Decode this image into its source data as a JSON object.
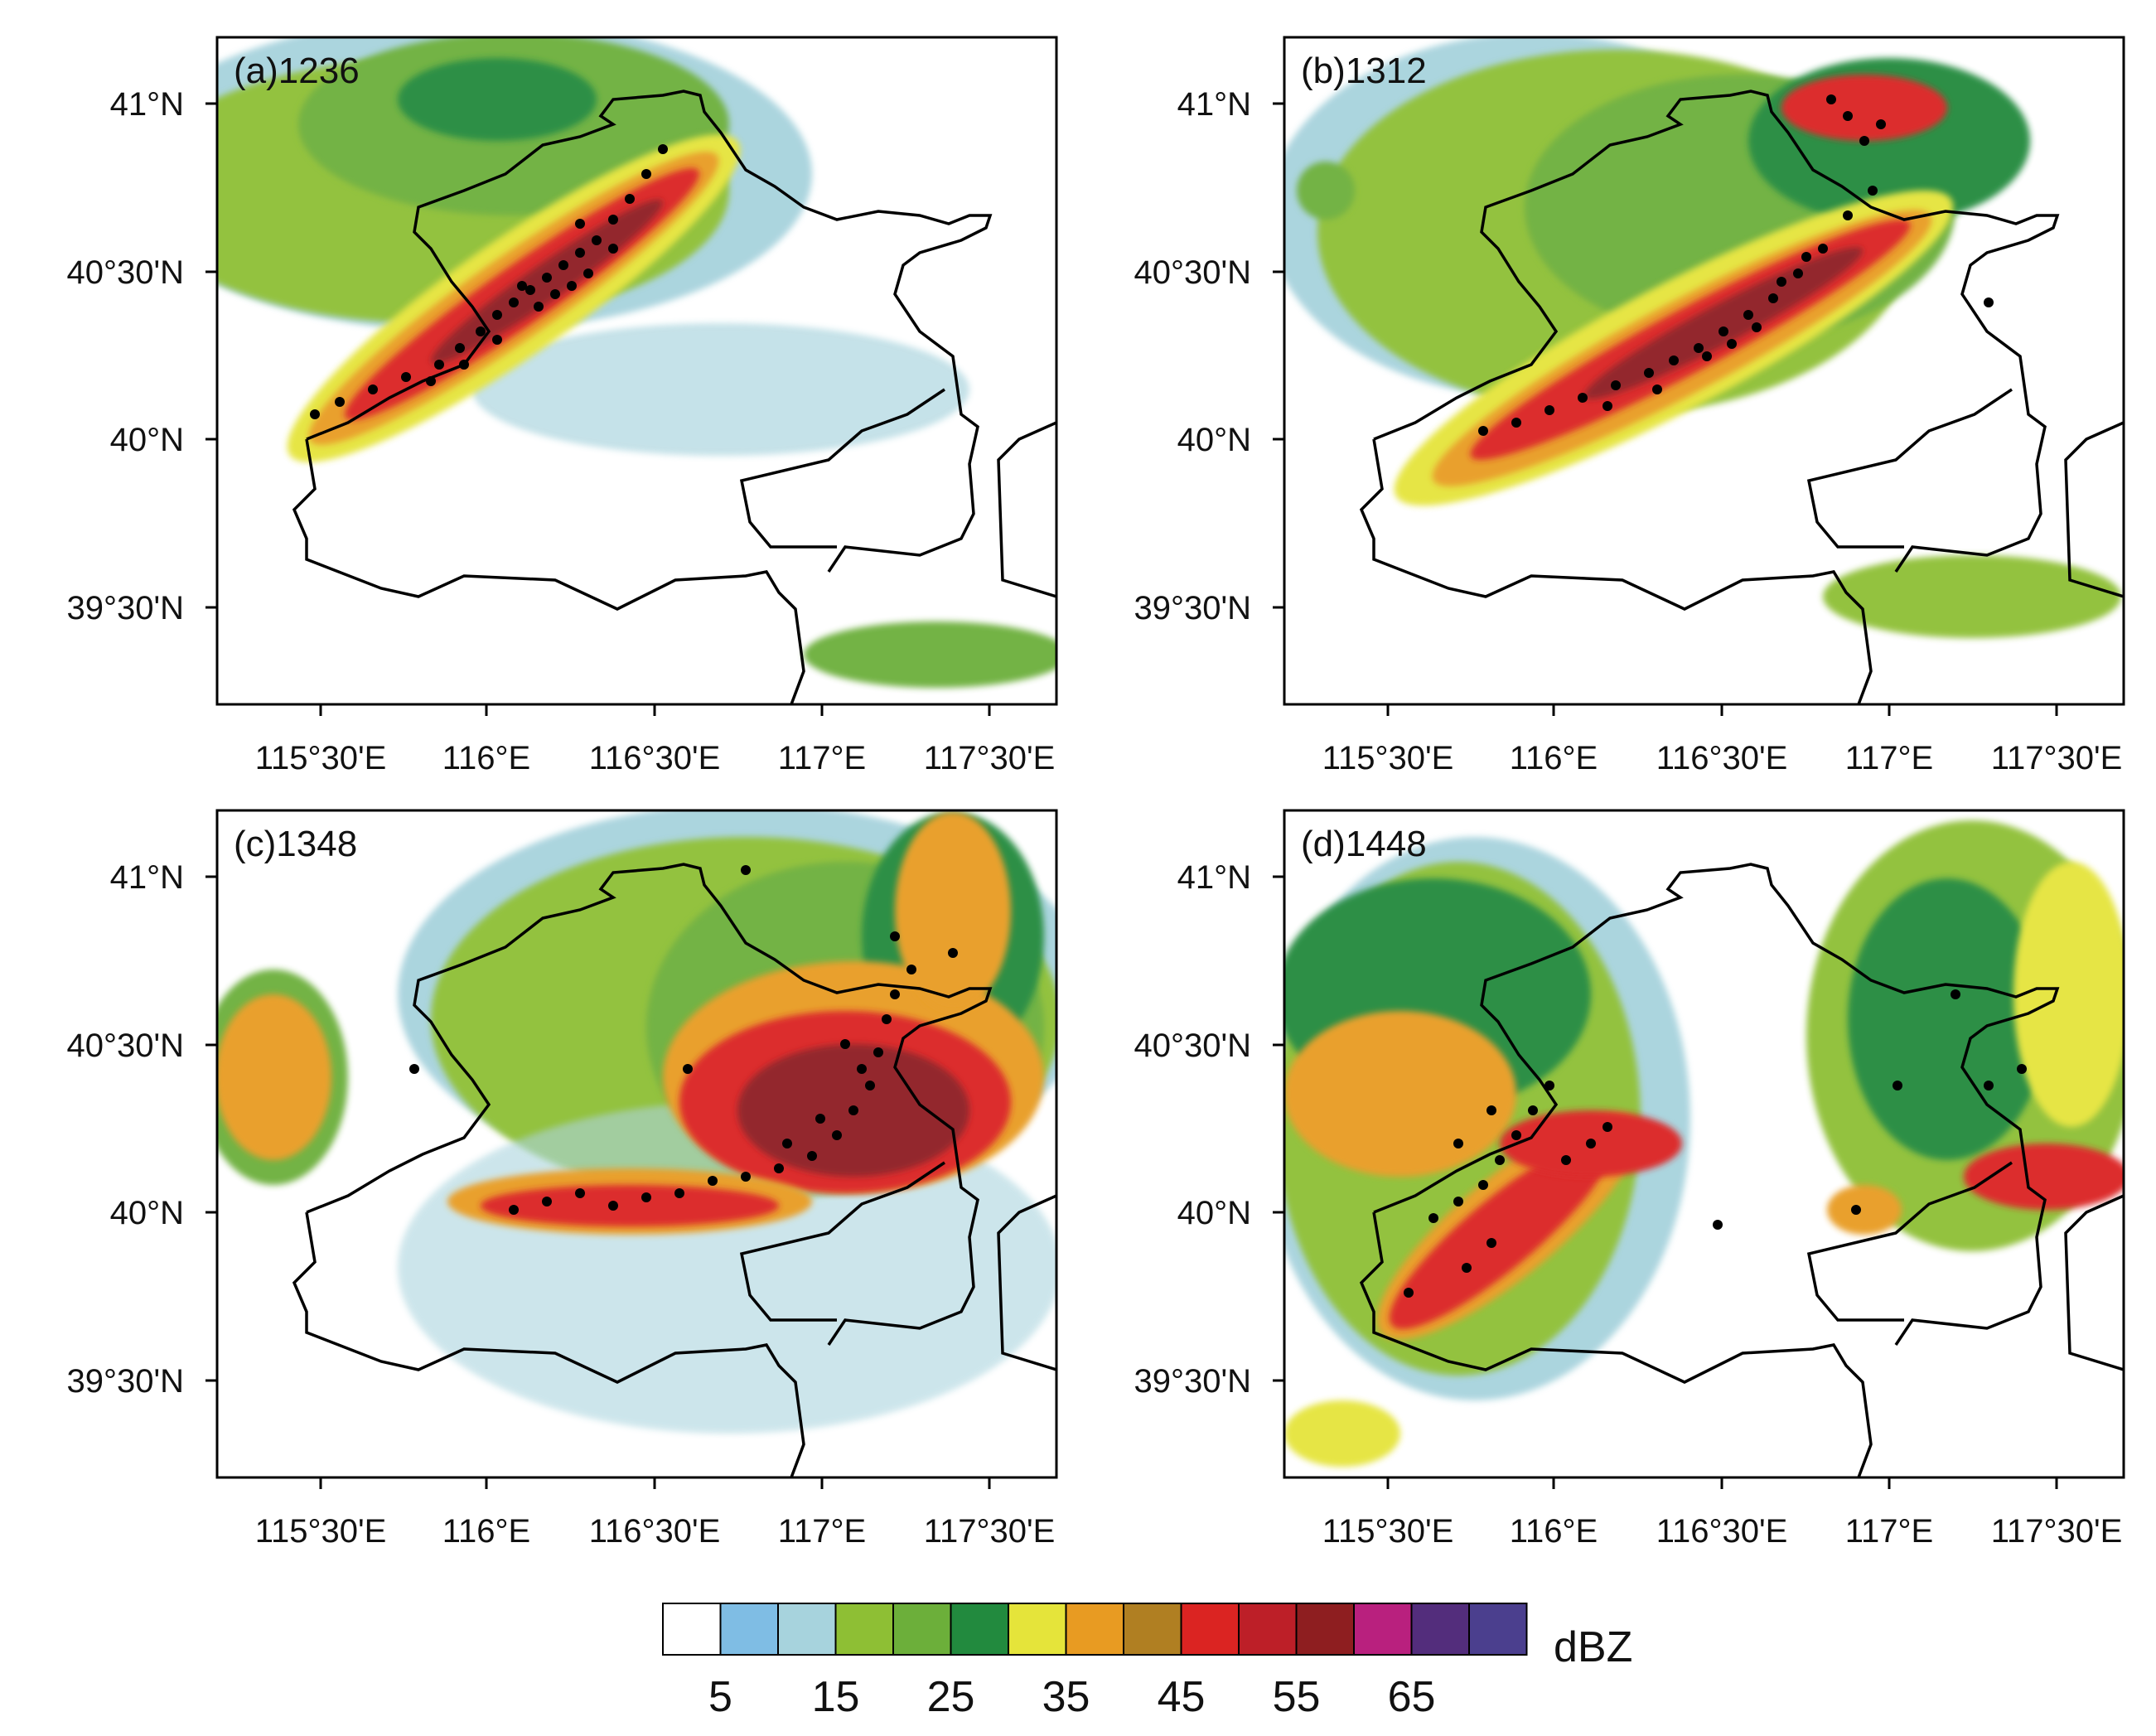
{
  "figure": {
    "unit": "dBZ",
    "lat_ticks": [
      "41°N",
      "40°30'N",
      "40°N",
      "39°30'N"
    ],
    "lon_ticks": [
      "115°30'E",
      "116°E",
      "116°30'E",
      "117°E",
      "117°30'E"
    ],
    "colorbar": {
      "colors": [
        "#ffffff",
        "#7fbde4",
        "#a7d3dd",
        "#8ebf34",
        "#6caf3a",
        "#228a3e",
        "#e5e43a",
        "#e89b22",
        "#b07f22",
        "#db2422",
        "#bd1f28",
        "#8e1e20",
        "#b9207e",
        "#532d7c",
        "#4b3f8e"
      ],
      "labels": [
        "5",
        "15",
        "25",
        "35",
        "45",
        "55",
        "65"
      ]
    },
    "panels": [
      {
        "id": "a",
        "label": "(a)1236"
      },
      {
        "id": "b",
        "label": "(b)1312"
      },
      {
        "id": "c",
        "label": "(c)1348"
      },
      {
        "id": "d",
        "label": "(d)1448"
      }
    ]
  }
}
